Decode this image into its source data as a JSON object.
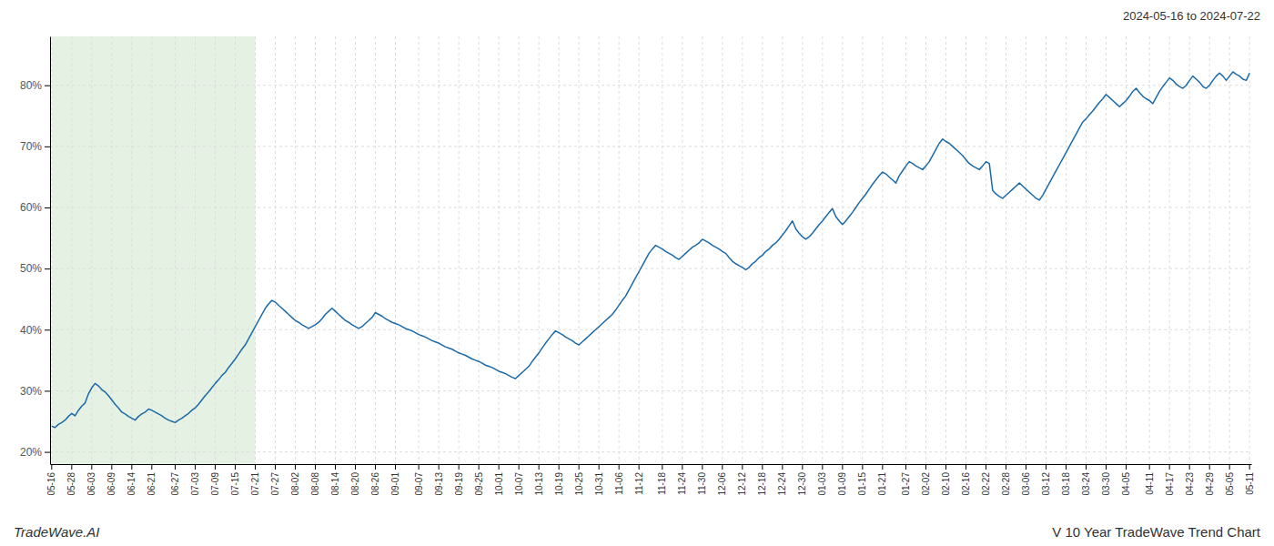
{
  "chart_data": {
    "type": "line",
    "title": "V 10 Year TradeWave Trend Chart",
    "subtitle": "2024-05-16 to 2024-07-22",
    "annotations": [
      "TradeWave.AI"
    ],
    "categories": [
      "05-16",
      null,
      null,
      null,
      null,
      null,
      "05-28",
      null,
      null,
      null,
      null,
      null,
      "06-03",
      null,
      null,
      null,
      null,
      null,
      "06-09",
      null,
      null,
      null,
      null,
      null,
      "06-14",
      null,
      null,
      null,
      null,
      null,
      "06-21",
      null,
      null,
      null,
      null,
      null,
      null,
      "06-27",
      null,
      null,
      null,
      null,
      null,
      "07-03",
      null,
      null,
      null,
      null,
      null,
      "07-09",
      null,
      null,
      null,
      null,
      null,
      "07-15",
      null,
      null,
      null,
      null,
      null,
      "07-21",
      null,
      null,
      null,
      null,
      null,
      "07-27",
      null,
      null,
      null,
      null,
      null,
      "08-02",
      null,
      null,
      null,
      null,
      null,
      "08-08",
      null,
      null,
      null,
      null,
      null,
      "08-14",
      null,
      null,
      null,
      null,
      null,
      "08-20",
      null,
      null,
      null,
      null,
      null,
      "08-26",
      null,
      null,
      null,
      null,
      null,
      "09-01",
      null,
      null,
      null,
      null,
      null,
      null,
      "09-07",
      null,
      null,
      null,
      null,
      null,
      "09-13",
      null,
      null,
      null,
      null,
      null,
      "09-19",
      null,
      null,
      null,
      null,
      null,
      "09-25",
      null,
      null,
      null,
      null,
      null,
      "10-01",
      null,
      null,
      null,
      null,
      null,
      "10-07",
      null,
      null,
      null,
      null,
      null,
      "10-13",
      null,
      null,
      null,
      null,
      null,
      "10-19",
      null,
      null,
      null,
      null,
      null,
      "10-25",
      null,
      null,
      null,
      null,
      null,
      "10-31",
      null,
      null,
      null,
      null,
      null,
      "11-06",
      null,
      null,
      null,
      null,
      null,
      "11-12",
      null,
      null,
      null,
      null,
      null,
      null,
      "11-18",
      null,
      null,
      null,
      null,
      null,
      "11-24",
      null,
      null,
      null,
      null,
      null,
      "11-30",
      null,
      null,
      null,
      null,
      null,
      "12-06",
      null,
      null,
      null,
      null,
      null,
      "12-12",
      null,
      null,
      null,
      null,
      null,
      "12-18",
      null,
      null,
      null,
      null,
      null,
      "12-24",
      null,
      null,
      null,
      null,
      null,
      "12-30",
      null,
      null,
      null,
      null,
      null,
      "01-03",
      null,
      null,
      null,
      null,
      null,
      "01-09",
      null,
      null,
      null,
      null,
      null,
      "01-15",
      null,
      null,
      null,
      null,
      null,
      "01-21",
      null,
      null,
      null,
      null,
      null,
      null,
      "01-27",
      null,
      null,
      null,
      null,
      null,
      "02-02",
      null,
      null,
      null,
      null,
      null,
      "02-10",
      null,
      null,
      null,
      null,
      null,
      "02-16",
      null,
      null,
      null,
      null,
      null,
      "02-22",
      null,
      null,
      null,
      null,
      null,
      "02-28",
      null,
      null,
      null,
      null,
      null,
      "03-06",
      null,
      null,
      null,
      null,
      null,
      "03-12",
      null,
      null,
      null,
      null,
      null,
      "03-18",
      null,
      null,
      null,
      null,
      null,
      "03-24",
      null,
      null,
      null,
      null,
      null,
      "03-30",
      null,
      null,
      null,
      null,
      null,
      "04-05",
      null,
      null,
      null,
      null,
      null,
      null,
      "04-11",
      null,
      null,
      null,
      null,
      null,
      "04-17",
      null,
      null,
      null,
      null,
      null,
      "04-23",
      null,
      null,
      null,
      null,
      null,
      "04-29",
      null,
      null,
      null,
      null,
      null,
      "05-05",
      null,
      null,
      null,
      null,
      null,
      "05-11"
    ],
    "values": [
      24.2,
      24.0,
      24.5,
      24.8,
      25.2,
      25.8,
      26.3,
      25.9,
      26.8,
      27.5,
      28.0,
      29.5,
      30.5,
      31.2,
      30.8,
      30.2,
      29.8,
      29.2,
      28.5,
      27.8,
      27.2,
      26.5,
      26.2,
      25.8,
      25.5,
      25.2,
      25.8,
      26.2,
      26.5,
      27.0,
      26.8,
      26.5,
      26.2,
      25.9,
      25.5,
      25.2,
      25.0,
      24.8,
      25.2,
      25.5,
      25.9,
      26.3,
      26.8,
      27.2,
      27.8,
      28.5,
      29.2,
      29.8,
      30.5,
      31.2,
      31.8,
      32.5,
      33.0,
      33.8,
      34.5,
      35.2,
      36.0,
      36.8,
      37.5,
      38.5,
      39.5,
      40.5,
      41.5,
      42.5,
      43.5,
      44.2,
      44.8,
      44.5,
      44.0,
      43.5,
      43.0,
      42.5,
      42.0,
      41.5,
      41.2,
      40.8,
      40.5,
      40.2,
      40.5,
      40.8,
      41.2,
      41.8,
      42.5,
      43.0,
      43.5,
      43.0,
      42.5,
      42.0,
      41.5,
      41.2,
      40.8,
      40.5,
      40.2,
      40.5,
      41.0,
      41.5,
      42.0,
      42.8,
      42.5,
      42.2,
      41.8,
      41.5,
      41.2,
      41.0,
      40.8,
      40.5,
      40.2,
      40.0,
      39.8,
      39.5,
      39.2,
      39.0,
      38.8,
      38.5,
      38.2,
      38.0,
      37.8,
      37.5,
      37.2,
      37.0,
      36.8,
      36.5,
      36.2,
      36.0,
      35.8,
      35.5,
      35.2,
      35.0,
      34.8,
      34.5,
      34.2,
      34.0,
      33.8,
      33.5,
      33.2,
      33.0,
      32.8,
      32.5,
      32.2,
      32.0,
      32.5,
      33.0,
      33.5,
      34.0,
      34.8,
      35.5,
      36.2,
      37.0,
      37.8,
      38.5,
      39.2,
      39.8,
      39.5,
      39.2,
      38.8,
      38.5,
      38.2,
      37.8,
      37.5,
      38.0,
      38.5,
      39.0,
      39.5,
      40.0,
      40.5,
      41.0,
      41.5,
      42.0,
      42.5,
      43.2,
      44.0,
      44.8,
      45.5,
      46.5,
      47.5,
      48.5,
      49.5,
      50.5,
      51.5,
      52.5,
      53.2,
      53.8,
      53.5,
      53.2,
      52.8,
      52.5,
      52.2,
      51.8,
      51.5,
      52.0,
      52.5,
      53.0,
      53.5,
      53.8,
      54.2,
      54.8,
      54.5,
      54.2,
      53.8,
      53.5,
      53.2,
      52.8,
      52.5,
      51.8,
      51.2,
      50.8,
      50.5,
      50.2,
      49.8,
      50.2,
      50.8,
      51.2,
      51.8,
      52.2,
      52.8,
      53.2,
      53.8,
      54.2,
      54.8,
      55.5,
      56.2,
      57.0,
      57.8,
      56.5,
      55.8,
      55.2,
      54.8,
      55.2,
      55.8,
      56.5,
      57.2,
      57.8,
      58.5,
      59.2,
      59.8,
      58.5,
      57.8,
      57.2,
      57.8,
      58.5,
      59.2,
      60.0,
      60.8,
      61.5,
      62.2,
      63.0,
      63.8,
      64.5,
      65.2,
      65.8,
      65.5,
      65.0,
      64.5,
      64.0,
      65.2,
      66.0,
      66.8,
      67.5,
      67.2,
      66.8,
      66.5,
      66.2,
      66.8,
      67.5,
      68.5,
      69.5,
      70.5,
      71.2,
      70.8,
      70.5,
      70.0,
      69.5,
      69.0,
      68.5,
      67.8,
      67.2,
      66.8,
      66.5,
      66.2,
      66.8,
      67.5,
      67.2,
      62.8,
      62.2,
      61.8,
      61.5,
      62.0,
      62.5,
      63.0,
      63.5,
      64.0,
      63.5,
      63.0,
      62.5,
      62.0,
      61.5,
      61.2,
      62.0,
      63.0,
      64.0,
      65.0,
      66.0,
      67.0,
      68.0,
      69.0,
      70.0,
      71.0,
      72.0,
      73.0,
      74.0,
      74.5,
      75.2,
      75.8,
      76.5,
      77.2,
      77.8,
      78.5,
      78.0,
      77.5,
      77.0,
      76.5,
      77.0,
      77.5,
      78.2,
      79.0,
      79.5,
      78.8,
      78.2,
      77.8,
      77.5,
      77.0,
      78.0,
      79.0,
      79.8,
      80.5,
      81.2,
      80.8,
      80.2,
      79.8,
      79.5,
      80.0,
      80.8,
      81.5,
      81.0,
      80.5,
      79.8,
      79.5,
      80.0,
      80.8,
      81.5,
      82.0,
      81.5,
      80.8,
      81.5,
      82.2,
      81.8,
      81.5,
      81.0,
      80.8,
      82.0
    ],
    "color": "#1a6aaa",
    "shade": {
      "start": "05-16",
      "end": "07-21",
      "color": "#d4e8d0"
    },
    "ylim": [
      18,
      88
    ],
    "yticks": [
      {
        "value": 20,
        "label": "20%"
      },
      {
        "value": 30,
        "label": "30%"
      },
      {
        "value": 40,
        "label": "40%"
      },
      {
        "value": 50,
        "label": "50%"
      },
      {
        "value": 60,
        "label": "60%"
      },
      {
        "value": 70,
        "label": "70%"
      },
      {
        "value": 80,
        "label": "80%"
      }
    ],
    "grid": true
  }
}
